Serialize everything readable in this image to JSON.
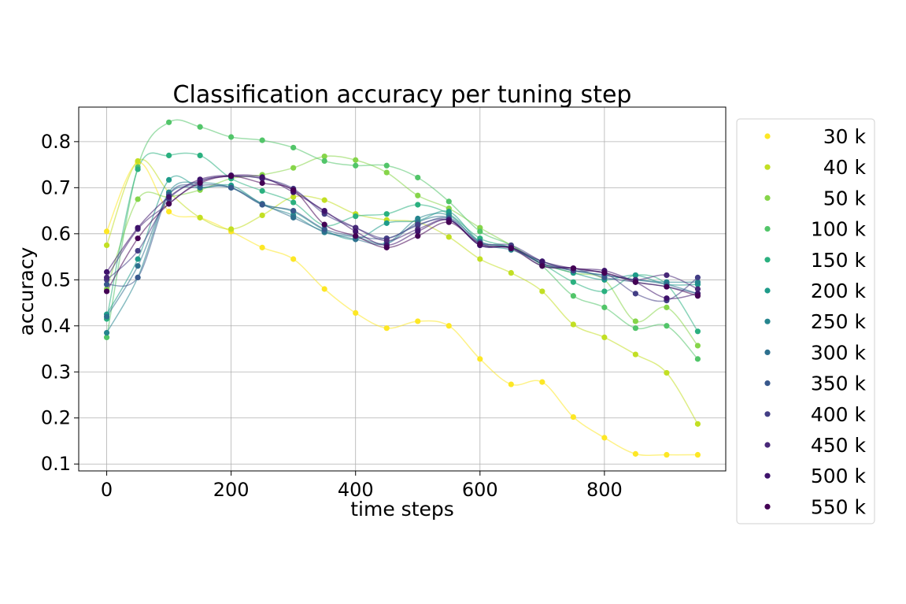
{
  "chart_data": {
    "type": "line",
    "title": "Classification accuracy per tuning step",
    "xlabel": "time steps",
    "ylabel": "accuracy",
    "xlim": [
      -45,
      995
    ],
    "ylim": [
      0.085,
      0.875
    ],
    "xticks": [
      0,
      200,
      400,
      600,
      800
    ],
    "xtick_labels": [
      "0",
      "200",
      "400",
      "600",
      "800"
    ],
    "yticks": [
      0.1,
      0.2,
      0.3,
      0.4,
      0.5,
      0.6,
      0.7,
      0.8
    ],
    "ytick_labels": [
      "0.1",
      "0.2",
      "0.3",
      "0.4",
      "0.5",
      "0.6",
      "0.7",
      "0.8"
    ],
    "grid": true,
    "legend_position": "right-outside",
    "x": [
      0,
      50,
      100,
      150,
      200,
      250,
      300,
      350,
      400,
      450,
      500,
      550,
      600,
      650,
      700,
      750,
      800,
      850,
      900,
      950
    ],
    "series": [
      {
        "name": "30 k",
        "color": "#fde725",
        "values": [
          0.605,
          0.755,
          0.648,
          0.635,
          0.605,
          0.57,
          0.545,
          0.48,
          0.428,
          0.395,
          0.41,
          0.4,
          0.328,
          0.273,
          0.278,
          0.202,
          0.157,
          0.122,
          0.12,
          0.12
        ]
      },
      {
        "name": "40 k",
        "color": "#c2df23",
        "values": [
          0.575,
          0.758,
          0.69,
          0.635,
          0.61,
          0.64,
          0.68,
          0.673,
          0.643,
          0.63,
          0.625,
          0.593,
          0.545,
          0.515,
          0.475,
          0.403,
          0.375,
          0.338,
          0.298,
          0.187
        ]
      },
      {
        "name": "50 k",
        "color": "#86d549",
        "values": [
          0.48,
          0.675,
          0.68,
          0.695,
          0.72,
          0.728,
          0.743,
          0.768,
          0.76,
          0.733,
          0.683,
          0.655,
          0.613,
          0.575,
          0.535,
          0.515,
          0.5,
          0.41,
          0.44,
          0.357
        ]
      },
      {
        "name": "100 k",
        "color": "#52c569",
        "values": [
          0.375,
          0.745,
          0.842,
          0.832,
          0.81,
          0.803,
          0.787,
          0.758,
          0.748,
          0.748,
          0.722,
          0.67,
          0.605,
          0.575,
          0.53,
          0.465,
          0.44,
          0.395,
          0.4,
          0.328
        ]
      },
      {
        "name": "150 k",
        "color": "#2ab07f",
        "values": [
          0.415,
          0.74,
          0.77,
          0.77,
          0.72,
          0.693,
          0.668,
          0.618,
          0.638,
          0.643,
          0.663,
          0.643,
          0.59,
          0.57,
          0.535,
          0.495,
          0.475,
          0.51,
          0.49,
          0.388
        ]
      },
      {
        "name": "200 k",
        "color": "#1e9b8a",
        "values": [
          0.425,
          0.545,
          0.717,
          0.7,
          0.705,
          0.665,
          0.648,
          0.608,
          0.588,
          0.623,
          0.628,
          0.648,
          0.583,
          0.57,
          0.535,
          0.515,
          0.5,
          0.51,
          0.49,
          0.49
        ]
      },
      {
        "name": "250 k",
        "color": "#25858e",
        "values": [
          0.385,
          0.505,
          0.69,
          0.71,
          0.7,
          0.663,
          0.64,
          0.603,
          0.593,
          0.58,
          0.633,
          0.64,
          0.58,
          0.565,
          0.54,
          0.52,
          0.51,
          0.5,
          0.495,
          0.495
        ]
      },
      {
        "name": "300 k",
        "color": "#2d708e",
        "values": [
          0.42,
          0.53,
          0.685,
          0.7,
          0.7,
          0.665,
          0.635,
          0.605,
          0.588,
          0.578,
          0.625,
          0.635,
          0.583,
          0.57,
          0.535,
          0.52,
          0.51,
          0.5,
          0.49,
          0.47
        ]
      },
      {
        "name": "350 k",
        "color": "#38588c",
        "values": [
          0.49,
          0.505,
          0.685,
          0.705,
          0.7,
          0.663,
          0.65,
          0.61,
          0.595,
          0.59,
          0.618,
          0.633,
          0.575,
          0.57,
          0.53,
          0.525,
          0.505,
          0.495,
          0.485,
          0.47
        ]
      },
      {
        "name": "400 k",
        "color": "#433e85",
        "values": [
          0.5,
          0.563,
          0.675,
          0.715,
          0.725,
          0.72,
          0.698,
          0.643,
          0.613,
          0.59,
          0.62,
          0.63,
          0.58,
          0.575,
          0.54,
          0.52,
          0.515,
          0.47,
          0.455,
          0.505
        ]
      },
      {
        "name": "450 k",
        "color": "#482878",
        "values": [
          0.505,
          0.61,
          0.665,
          0.713,
          0.725,
          0.72,
          0.695,
          0.648,
          0.613,
          0.585,
          0.61,
          0.63,
          0.575,
          0.57,
          0.535,
          0.525,
          0.515,
          0.5,
          0.51,
          0.48
        ]
      },
      {
        "name": "500 k",
        "color": "#3e126b",
        "values": [
          0.517,
          0.613,
          0.68,
          0.718,
          0.727,
          0.723,
          0.69,
          0.65,
          0.605,
          0.575,
          0.605,
          0.63,
          0.575,
          0.57,
          0.54,
          0.525,
          0.52,
          0.495,
          0.46,
          0.47
        ]
      },
      {
        "name": "550 k",
        "color": "#440154",
        "values": [
          0.475,
          0.59,
          0.665,
          0.71,
          0.725,
          0.71,
          0.695,
          0.62,
          0.595,
          0.57,
          0.595,
          0.625,
          0.578,
          0.568,
          0.53,
          0.525,
          0.515,
          0.495,
          0.485,
          0.465
        ]
      }
    ]
  }
}
